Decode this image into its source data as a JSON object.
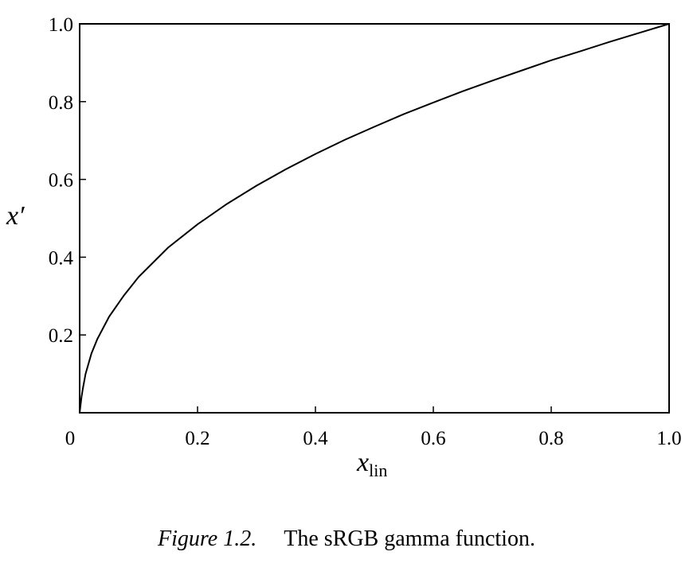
{
  "chart_data": {
    "type": "line",
    "title": "",
    "xlabel_main": "x",
    "xlabel_sub": "lin",
    "ylabel": "x′",
    "xlim": [
      0,
      1.0
    ],
    "ylim": [
      0,
      1.0
    ],
    "x_ticks": [
      {
        "value": 0,
        "label": "0"
      },
      {
        "value": 0.2,
        "label": "0.2"
      },
      {
        "value": 0.4,
        "label": "0.4"
      },
      {
        "value": 0.6,
        "label": "0.6"
      },
      {
        "value": 0.8,
        "label": "0.8"
      },
      {
        "value": 1.0,
        "label": "1.0"
      }
    ],
    "y_ticks": [
      {
        "value": 0.2,
        "label": "0.2"
      },
      {
        "value": 0.4,
        "label": "0.4"
      },
      {
        "value": 0.6,
        "label": "0.6"
      },
      {
        "value": 0.8,
        "label": "0.8"
      },
      {
        "value": 1.0,
        "label": "1.0"
      }
    ],
    "grid": false,
    "legend": "none",
    "series": [
      {
        "x": [
          0,
          0.0031308,
          0.005,
          0.01,
          0.02,
          0.03,
          0.05,
          0.075,
          0.1,
          0.15,
          0.2,
          0.25,
          0.3,
          0.35,
          0.4,
          0.45,
          0.5,
          0.55,
          0.6,
          0.65,
          0.7,
          0.75,
          0.8,
          0.85,
          0.9,
          0.95,
          1.0
        ],
        "y": [
          0,
          0.0404,
          0.0583,
          0.0998,
          0.1524,
          0.1895,
          0.2471,
          0.3015,
          0.3492,
          0.4246,
          0.4845,
          0.5371,
          0.5838,
          0.6262,
          0.6654,
          0.7019,
          0.7354,
          0.768,
          0.7977,
          0.8267,
          0.8539,
          0.8801,
          0.9063,
          0.9298,
          0.9542,
          0.9771,
          1.0
        ]
      }
    ],
    "color": "#000000"
  },
  "caption": {
    "figure_label": "Figure 1.2.",
    "text": "The sRGB gamma function."
  }
}
